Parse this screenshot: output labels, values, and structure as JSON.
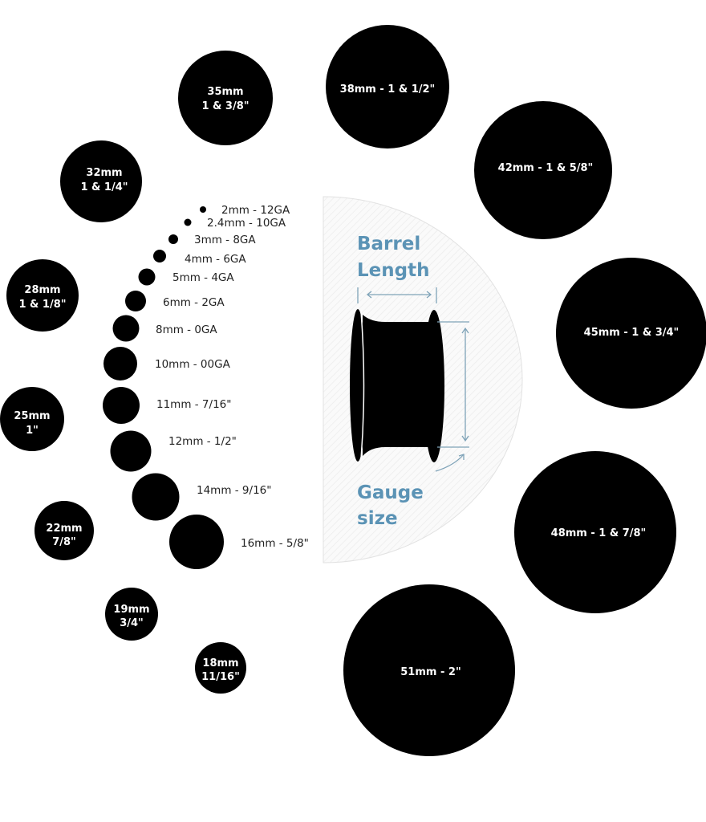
{
  "small_sizes": [
    {
      "label": "2mm - 12GA"
    },
    {
      "label": "2.4mm - 10GA"
    },
    {
      "label": "3mm - 8GA"
    },
    {
      "label": "4mm - 6GA"
    },
    {
      "label": "5mm - 4GA"
    },
    {
      "label": "6mm - 2GA"
    },
    {
      "label": "8mm - 0GA"
    },
    {
      "label": "10mm - 00GA"
    },
    {
      "label": "11mm - 7/16\""
    },
    {
      "label": "12mm - 1/2\""
    },
    {
      "label": "14mm - 9/16\""
    },
    {
      "label": "16mm - 5/8\""
    }
  ],
  "left_sizes": [
    {
      "mm": "18mm",
      "inch": "11/16\""
    },
    {
      "mm": "19mm",
      "inch": "3/4\""
    },
    {
      "mm": "22mm",
      "inch": "7/8\""
    },
    {
      "mm": "25mm",
      "inch": "1\""
    },
    {
      "mm": "28mm",
      "inch": "1 & 1/8\""
    },
    {
      "mm": "32mm",
      "inch": "1 & 1/4\""
    },
    {
      "mm": "35mm",
      "inch": "1 & 3/8\""
    }
  ],
  "right_sizes": [
    {
      "label": "38mm - 1 & 1/2\""
    },
    {
      "label": "42mm - 1 & 5/8\""
    },
    {
      "label": "45mm - 1 & 3/4\""
    },
    {
      "label": "48mm - 1 & 7/8\""
    },
    {
      "label": "51mm - 2\""
    }
  ],
  "diagram": {
    "barrel_line1": "Barrel",
    "barrel_line2": "Length",
    "gauge_line1": "Gauge",
    "gauge_line2": "size",
    "accent_color": "#5b93b5"
  }
}
